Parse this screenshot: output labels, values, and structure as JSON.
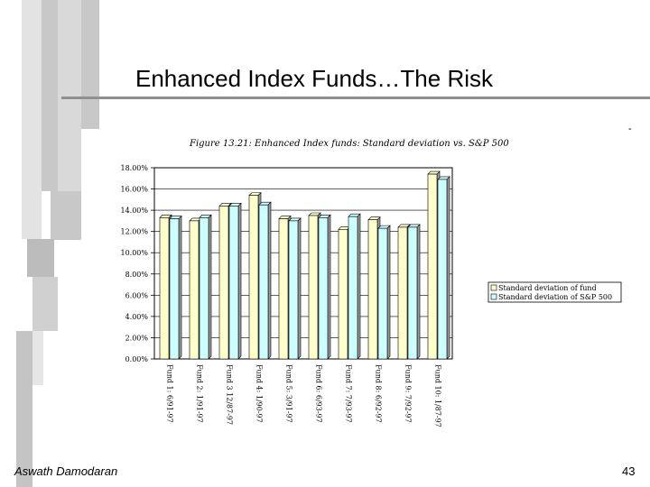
{
  "slide": {
    "title": "Enhanced Index Funds…The Risk",
    "figure_title": "Figure 13.21: Enhanced Index funds: Standard deviation vs. S&P 500",
    "tick_mark": "-",
    "footer_author": "Aswath Damodaran",
    "page_number": "43"
  },
  "colors": {
    "fund_bar": "#ffffcc",
    "sp500_bar": "#ccffff",
    "decoration": "#bfbfbf"
  },
  "chart_data": {
    "type": "bar",
    "categories": [
      "Fund 1: 6/91-97",
      "Fund 2: 1/91-97",
      "Fund 3 12/87-97",
      "Fund 4: 1/90-97",
      "Fund 5: 3/91-97",
      "Fund 6: 6/93-97",
      "Fund 7: 7/93-97",
      "Fund 8: 6/92-97",
      "Fund 9: 7/92-97",
      "Fund 10: 1/87-97"
    ],
    "series": [
      {
        "name": "Standard deviation of fund",
        "values": [
          13.3,
          13.0,
          14.4,
          15.4,
          13.2,
          13.5,
          12.2,
          13.1,
          12.4,
          17.4
        ]
      },
      {
        "name": "Standard deviation of S&P 500",
        "values": [
          13.2,
          13.3,
          14.4,
          14.5,
          13.0,
          13.3,
          13.4,
          12.3,
          12.4,
          16.9
        ]
      }
    ],
    "ylim": [
      0,
      18
    ],
    "yticks": [
      "0.00%",
      "2.00%",
      "4.00%",
      "6.00%",
      "8.00%",
      "10.00%",
      "12.00%",
      "14.00%",
      "16.00%",
      "18.00%"
    ],
    "xlabel": "",
    "ylabel": "",
    "legend_position": "right",
    "grid": true
  }
}
